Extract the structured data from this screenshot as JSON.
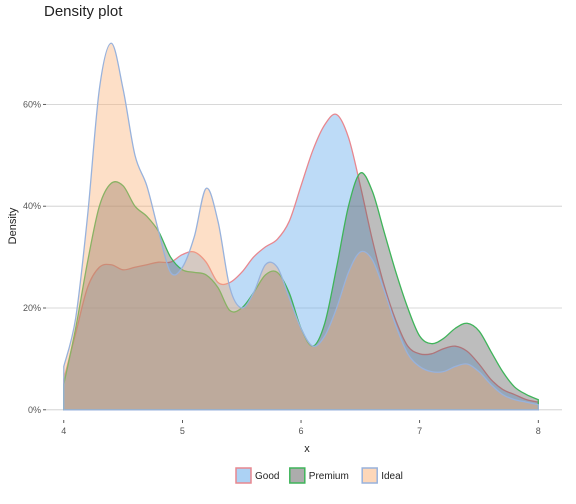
{
  "chart_data": {
    "type": "area",
    "title": "Density plot",
    "xlabel": "x",
    "ylabel": "Density",
    "xlim": [
      3.85,
      8.2
    ],
    "ylim": [
      -0.02,
      0.75
    ],
    "x_ticks": [
      4,
      5,
      6,
      7,
      8
    ],
    "x_tick_labels": [
      "4",
      "5",
      "6",
      "7",
      "8"
    ],
    "y_ticks": [
      0,
      0.2,
      0.4,
      0.6
    ],
    "y_tick_labels": [
      "0%",
      "20%",
      "40%",
      "60%"
    ],
    "grid": "horizontal",
    "legend_position": "bottom",
    "series": [
      {
        "name": "Good",
        "fill": "#5aa5ea",
        "stroke": "#e8878f",
        "points": [
          [
            4.0,
            0.06
          ],
          [
            4.1,
            0.15
          ],
          [
            4.2,
            0.24
          ],
          [
            4.3,
            0.28
          ],
          [
            4.4,
            0.285
          ],
          [
            4.5,
            0.275
          ],
          [
            4.6,
            0.28
          ],
          [
            4.7,
            0.285
          ],
          [
            4.8,
            0.29
          ],
          [
            4.9,
            0.29
          ],
          [
            5.0,
            0.305
          ],
          [
            5.1,
            0.31
          ],
          [
            5.2,
            0.29
          ],
          [
            5.3,
            0.25
          ],
          [
            5.4,
            0.25
          ],
          [
            5.5,
            0.27
          ],
          [
            5.6,
            0.3
          ],
          [
            5.7,
            0.32
          ],
          [
            5.8,
            0.335
          ],
          [
            5.9,
            0.37
          ],
          [
            6.0,
            0.44
          ],
          [
            6.1,
            0.51
          ],
          [
            6.2,
            0.56
          ],
          [
            6.3,
            0.58
          ],
          [
            6.4,
            0.535
          ],
          [
            6.5,
            0.44
          ],
          [
            6.6,
            0.335
          ],
          [
            6.7,
            0.245
          ],
          [
            6.8,
            0.175
          ],
          [
            6.9,
            0.125
          ],
          [
            7.0,
            0.11
          ],
          [
            7.1,
            0.11
          ],
          [
            7.2,
            0.12
          ],
          [
            7.3,
            0.125
          ],
          [
            7.4,
            0.115
          ],
          [
            7.5,
            0.09
          ],
          [
            7.6,
            0.06
          ],
          [
            7.7,
            0.04
          ],
          [
            7.8,
            0.03
          ],
          [
            7.9,
            0.02
          ],
          [
            8.0,
            0.015
          ]
        ]
      },
      {
        "name": "Premium",
        "fill": "#5a5a5a",
        "stroke": "#3fb45a",
        "points": [
          [
            4.0,
            0.05
          ],
          [
            4.1,
            0.16
          ],
          [
            4.2,
            0.29
          ],
          [
            4.3,
            0.4
          ],
          [
            4.4,
            0.445
          ],
          [
            4.5,
            0.44
          ],
          [
            4.6,
            0.4
          ],
          [
            4.7,
            0.38
          ],
          [
            4.8,
            0.35
          ],
          [
            4.9,
            0.3
          ],
          [
            5.0,
            0.275
          ],
          [
            5.1,
            0.27
          ],
          [
            5.2,
            0.265
          ],
          [
            5.3,
            0.24
          ],
          [
            5.4,
            0.195
          ],
          [
            5.5,
            0.2
          ],
          [
            5.6,
            0.23
          ],
          [
            5.7,
            0.265
          ],
          [
            5.8,
            0.27
          ],
          [
            5.9,
            0.23
          ],
          [
            6.0,
            0.16
          ],
          [
            6.1,
            0.125
          ],
          [
            6.2,
            0.17
          ],
          [
            6.3,
            0.28
          ],
          [
            6.4,
            0.4
          ],
          [
            6.5,
            0.465
          ],
          [
            6.6,
            0.43
          ],
          [
            6.7,
            0.35
          ],
          [
            6.8,
            0.27
          ],
          [
            6.9,
            0.2
          ],
          [
            7.0,
            0.145
          ],
          [
            7.1,
            0.13
          ],
          [
            7.2,
            0.14
          ],
          [
            7.3,
            0.16
          ],
          [
            7.4,
            0.17
          ],
          [
            7.5,
            0.155
          ],
          [
            7.6,
            0.115
          ],
          [
            7.7,
            0.075
          ],
          [
            7.8,
            0.045
          ],
          [
            7.9,
            0.03
          ],
          [
            8.0,
            0.02
          ]
        ]
      },
      {
        "name": "Ideal",
        "fill": "#fbb074",
        "stroke": "#98b2dc",
        "points": [
          [
            4.0,
            0.085
          ],
          [
            4.1,
            0.18
          ],
          [
            4.2,
            0.38
          ],
          [
            4.3,
            0.63
          ],
          [
            4.4,
            0.72
          ],
          [
            4.5,
            0.63
          ],
          [
            4.6,
            0.5
          ],
          [
            4.7,
            0.44
          ],
          [
            4.8,
            0.35
          ],
          [
            4.9,
            0.27
          ],
          [
            5.0,
            0.28
          ],
          [
            5.1,
            0.34
          ],
          [
            5.2,
            0.435
          ],
          [
            5.3,
            0.37
          ],
          [
            5.4,
            0.24
          ],
          [
            5.5,
            0.2
          ],
          [
            5.6,
            0.23
          ],
          [
            5.7,
            0.285
          ],
          [
            5.8,
            0.28
          ],
          [
            5.9,
            0.22
          ],
          [
            6.0,
            0.16
          ],
          [
            6.1,
            0.125
          ],
          [
            6.2,
            0.145
          ],
          [
            6.3,
            0.2
          ],
          [
            6.4,
            0.27
          ],
          [
            6.5,
            0.31
          ],
          [
            6.6,
            0.295
          ],
          [
            6.7,
            0.235
          ],
          [
            6.8,
            0.165
          ],
          [
            6.9,
            0.11
          ],
          [
            7.0,
            0.085
          ],
          [
            7.1,
            0.075
          ],
          [
            7.2,
            0.075
          ],
          [
            7.3,
            0.085
          ],
          [
            7.4,
            0.09
          ],
          [
            7.5,
            0.075
          ],
          [
            7.6,
            0.05
          ],
          [
            7.7,
            0.03
          ],
          [
            7.8,
            0.02
          ],
          [
            7.9,
            0.015
          ],
          [
            8.0,
            0.01
          ]
        ]
      }
    ]
  }
}
